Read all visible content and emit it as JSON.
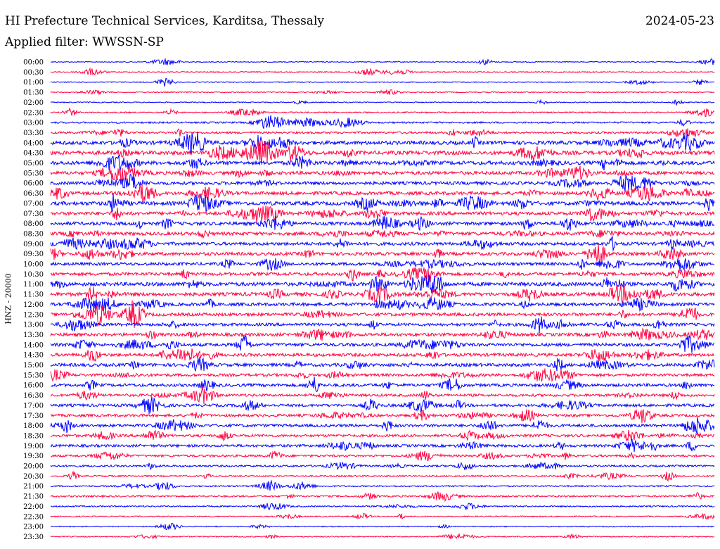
{
  "header": {
    "title": "HI Prefecture Technical Services, Karditsa, Thessaly",
    "date": "2024-05-23",
    "filter_text": "Applied filter: WWSSN-SP"
  },
  "chart_data": {
    "type": "line",
    "ylabel": "HNZ - 20000",
    "colors": [
      "#0000ff",
      "#ff0040"
    ],
    "rows": [
      {
        "label": "00:00",
        "activity": 0.08
      },
      {
        "label": "00:30",
        "activity": 0.14
      },
      {
        "label": "01:00",
        "activity": 0.1
      },
      {
        "label": "01:30",
        "activity": 0.12
      },
      {
        "label": "02:00",
        "activity": 0.12
      },
      {
        "label": "02:30",
        "activity": 0.2
      },
      {
        "label": "03:00",
        "activity": 0.3
      },
      {
        "label": "03:30",
        "activity": 0.4
      },
      {
        "label": "04:00",
        "activity": 0.85
      },
      {
        "label": "04:30",
        "activity": 0.9
      },
      {
        "label": "05:00",
        "activity": 0.85
      },
      {
        "label": "05:30",
        "activity": 0.75
      },
      {
        "label": "06:00",
        "activity": 0.7
      },
      {
        "label": "06:30",
        "activity": 0.75
      },
      {
        "label": "07:00",
        "activity": 0.85
      },
      {
        "label": "07:30",
        "activity": 0.75
      },
      {
        "label": "08:00",
        "activity": 0.75
      },
      {
        "label": "08:30",
        "activity": 0.75
      },
      {
        "label": "09:00",
        "activity": 0.7
      },
      {
        "label": "09:30",
        "activity": 0.7
      },
      {
        "label": "10:00",
        "activity": 0.65
      },
      {
        "label": "10:30",
        "activity": 0.7
      },
      {
        "label": "11:00",
        "activity": 0.85
      },
      {
        "label": "11:30",
        "activity": 0.85
      },
      {
        "label": "12:00",
        "activity": 0.7
      },
      {
        "label": "12:30",
        "activity": 0.7
      },
      {
        "label": "13:00",
        "activity": 0.65
      },
      {
        "label": "13:30",
        "activity": 0.7
      },
      {
        "label": "14:00",
        "activity": 0.7
      },
      {
        "label": "14:30",
        "activity": 0.7
      },
      {
        "label": "15:00",
        "activity": 0.7
      },
      {
        "label": "15:30",
        "activity": 0.6
      },
      {
        "label": "16:00",
        "activity": 0.65
      },
      {
        "label": "16:30",
        "activity": 0.55
      },
      {
        "label": "17:00",
        "activity": 0.6
      },
      {
        "label": "17:30",
        "activity": 0.55
      },
      {
        "label": "18:00",
        "activity": 0.6
      },
      {
        "label": "18:30",
        "activity": 0.55
      },
      {
        "label": "19:00",
        "activity": 0.55
      },
      {
        "label": "19:30",
        "activity": 0.45
      },
      {
        "label": "20:00",
        "activity": 0.35
      },
      {
        "label": "20:30",
        "activity": 0.25
      },
      {
        "label": "21:00",
        "activity": 0.25
      },
      {
        "label": "21:30",
        "activity": 0.3
      },
      {
        "label": "22:00",
        "activity": 0.22
      },
      {
        "label": "22:30",
        "activity": 0.15
      },
      {
        "label": "23:00",
        "activity": 0.12
      },
      {
        "label": "23:30",
        "activity": 0.15
      }
    ]
  }
}
